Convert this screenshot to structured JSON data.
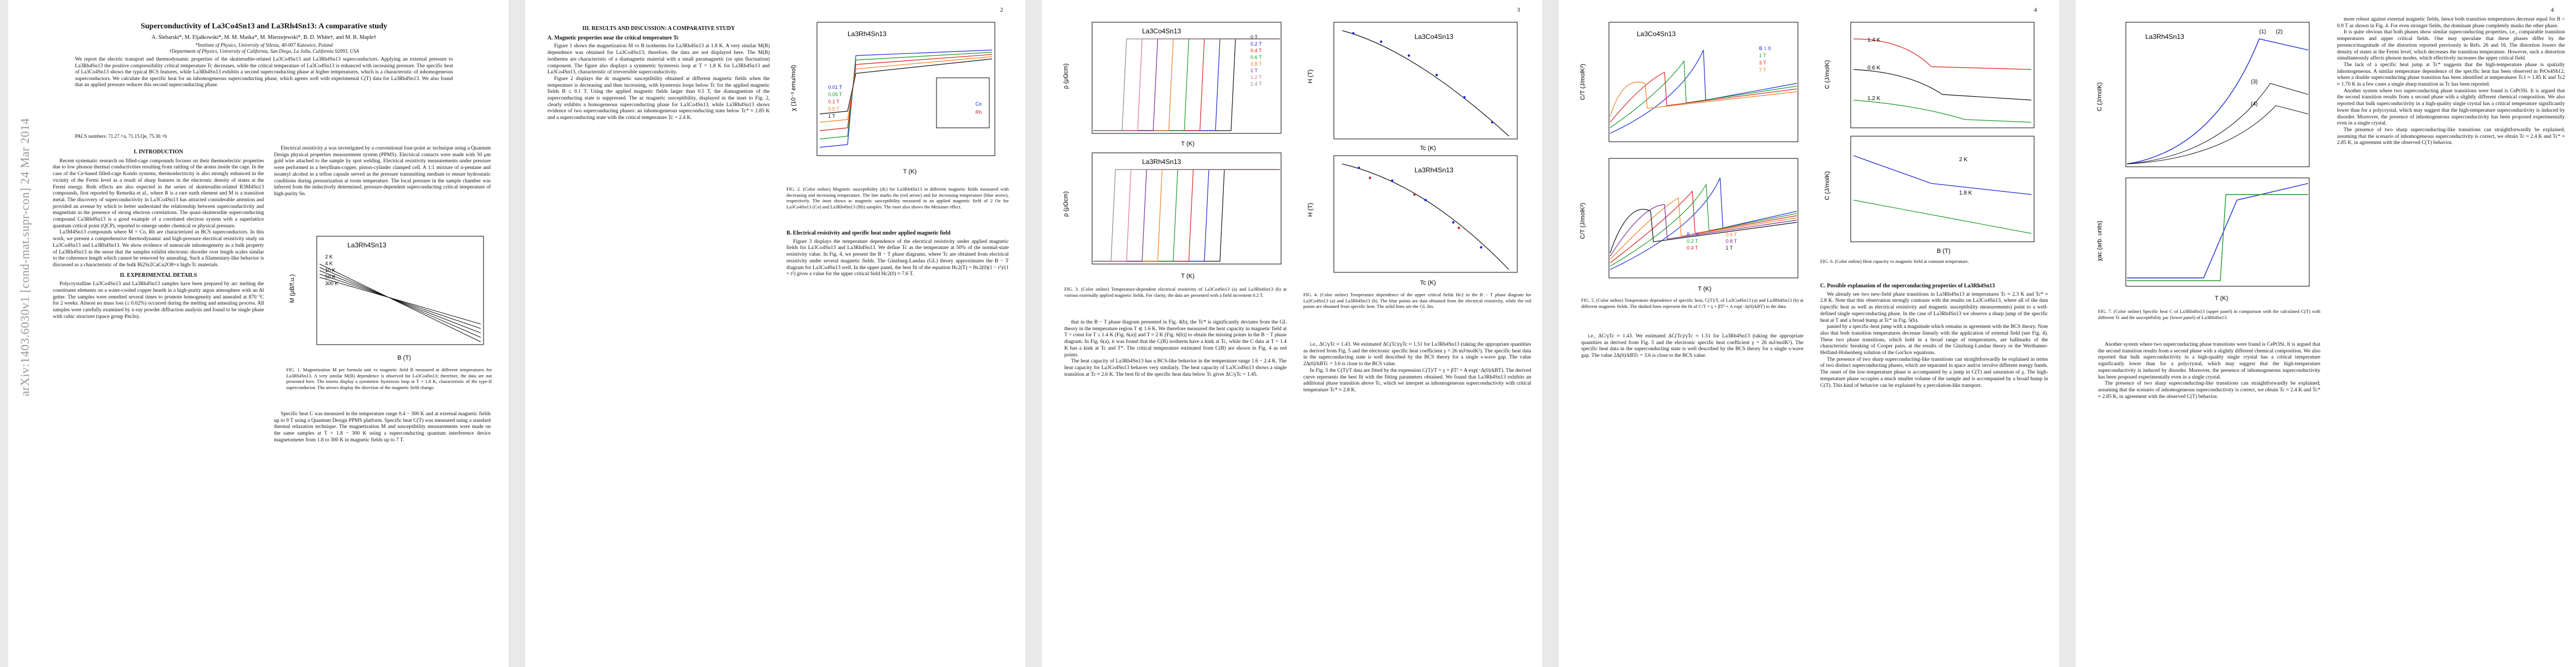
{
  "paper": {
    "arxiv_stamp": "arXiv:1403.6030v1 [cond-mat.supr-con] 24 Mar 2014",
    "title": "Superconductivity of La3Co4Sn13 and La3Rh4Sn13: A comparative study",
    "authors": "A. Ślebarski*, M. Fijałkowski*, M. M. Maśka*, M. Mierzejewski*, B. D. White†, and M. B. Maple†",
    "affiliation_1": "*Institute of Physics, University of Silesia, 40-007 Katowice, Poland",
    "affiliation_2": "†Department of Physics, University of California, San Diego, La Jolla, California 92093, USA",
    "abstract": "We report the electric transport and thermodynamic properties of the skutterudite-related La3Co4Sn13 and La3Rh4Sn13 superconductors. Applying an external pressure to La3Rh4Sn13 the positive compressibility critical temperature Tc decreases, while the critical temperature of La3Co4Sn13 is enhanced with increasing pressure. The specific heat of La3Co4Sn13 shows the typical BCS features, while La3Rh4Sn13 exhibits a second superconducting phase at higher temperatures, which is a characteristic of inhomogeneous superconductors. We calculate the specific heat for an inhomogeneous superconducting phase, which agrees well with experimental C(T) data for La3Rh4Sn13. We also found that an applied pressure reduces this second superconducting phase.",
    "pacs": "PACS numbers: 71.27.+a, 71.15.Qe, 75.30.+b",
    "page_numbers": [
      "2",
      "3",
      "4"
    ]
  },
  "sections": {
    "intro_heading": "I. INTRODUCTION",
    "intro_p1": "Recent systematic research on filled-cage compounds focuses on their thermoelectric properties due to low phonon thermal conductivities resulting from rattling of the atoms inside the cage. In the case of the Ce-based filled-cage Kondo systems, thermoelectricity is also strongly enhanced in the vicinity of the Fermi level as a result of sharp features in the electronic density of states at the Fermi energy. Both effects are also expected in the series of skutterudite-related R3M4Sn13 compounds, first reported by Remeika et al., where R is a rare earth element and M is a transition metal. The discovery of superconductivity in La3Co4Sn13 has attracted considerable attention and provided an avenue by which to better understand the relationship between superconductivity and magnetism in the presence of strong electron correlations. The quasi-skutterudite superconducting compound Ca3Rh4Sn13 is a good example of a correlated electron system with a superlattice quantum critical point (QCP), reported to emerge under chemical or physical pressure.",
    "intro_p2": "La3M4Sn13 compounds where M = Co, Rh are characterized as BCS superconductors. In this work, we present a comprehensive thermodynamic and high-pressure electrical resistivity study on La3Co4Sn13 and La3Rh4Sn13. We show evidence of nanoscale inhomogeneity as a bulk property of La3Rh4Sn13 in the sense that the samples exhibit electronic disorder over length scales similar to the coherence length which cannot be removed by annealing. Such a filamentary-like behavior is discussed as a characteristic of the bulk Bi2Sr2CaCu2O8+x high-Tc materials.",
    "exp_heading": "II. EXPERIMENTAL DETAILS",
    "exp_p1": "Polycrystalline La3Co4Sn13 and La3Rh4Sn13 samples have been prepared by arc melting the constituent elements on a water-cooled copper hearth in a high-purity argon atmosphere with an Al getter. The samples were remelted several times to promote homogeneity and annealed at 870 °C for 2 weeks. Almost no mass loss (≤ 0.02%) occurred during the melting and annealing process. All samples were carefully examined by x-ray powder diffraction analysis and found to be single phase with cubic structure (space group Pm3n).",
    "exp_p2": "Electrical resistivity ρ was investigated by a conventional four-point ac technique using a Quantum Design physical properties measurement system (PPMS). Electrical contacts were made with 50 μm gold wire attached to the sample by spot welding. Electrical resistivity measurements under pressure were performed in a beryllium-copper, piston-cylinder clamped cell. A 1:1 mixture of n-pentane and isoamyl alcohol in a teflon capsule served as the pressure transmitting medium to ensure hydrostatic conditions during pressurization at room temperature. The local pressure in the sample chamber was inferred from the inductively determined, pressure-dependent superconducting critical temperature of high-purity Sn.",
    "exp_p3": "Specific heat C was measured in the temperature range 0.4 − 300 K and at external magnetic fields up to 9 T using a Quantum Design PPMS platform. Specific heat C(T) was measured using a standard thermal relaxation technique. The magnetization M and susceptibility measurements were made on the same samples at T = 1.8 − 300 K using a superconducting quantum interference device magnetometer from 1.8 to 300 K in magnetic fields up to 7 T.",
    "results_heading": "III. RESULTS AND DISCUSSION: A COMPARATIVE STUDY",
    "sub_a": "A. Magnetic properties near the critical temperature Tc",
    "res_p1": "Figure 1 shows the magnetization M vs B isotherms for La3Rh4Sn13 at 1.8 K. A very similar M(B) dependence was obtained for La3Co4Sn13; therefore, the data are not displayed here. The M(B) isotherms are characteristic of a diamagnetic material with a small paramagnetic (or spin fluctuation) component. The figure also displays a symmetric hysteresis loop at T = 1.8 K for La3Rh4Sn13 and La3Co4Sn13, characteristic of irreversible superconductivity.",
    "res_p2": "Figure 2 displays the dc magnetic susceptibility obtained at different magnetic fields when the temperature is decreasing and then increasing, with hysteresis loops below Tc for the applied magnetic fields B ≤ 0.1 T. Using the applied magnetic fields larger than 0.5 T, the diamagnetism of the superconducting state is suppressed. The ac magnetic susceptibility, displayed in the inset to Fig. 2, clearly exhibits a homogeneous superconducting phase for La3Co4Sn13, while La3Rh4Sn13 shows evidence of two superconducting phases: an inhomogeneous superconducting state below Tc* ≈ 2.85 K and a superconducting state with the critical temperature Tc = 2.4 K.",
    "sub_b": "B. Electrical resistivity and specific heat under applied magnetic field",
    "res_p3": "Figure 3 displays the temperature dependence of the electrical resistivity under applied magnetic fields for La3Co4Sn13 and La3Rh4Sn13. We define Tc as the temperature at 50% of the normal-state resistivity value. In Fig. 4, we present the B − T phase diagrams, where Tc are obtained from electrical resistivity under several magnetic fields. The Ginzburg-Landau (GL) theory approximates the B − T diagram for La3Co4Sn13 well. In the upper panel, the best fit of the equation Hc2(T) = Hc2(0)(1 − t²)/(1 + t²) gives a value for the upper critical field Hc2(0) ≈ 7.6 T.",
    "res_p4": "that in the B − T phase diagram presented in Fig. 4(b), the Tc* is significantly deviates from the GL theory in the temperature region T ≲ 1.6 K. We therefore measured the heat capacity in magnetic field at T = const for T ≤ 1.4 K [Fig. 6(a)] and T ≈ 2 K [Fig. 6(b)] to obtain the missing points in the B − T phase diagram. In Fig. 6(a), it was found that the C(B) isotherm have a kink at Tc, while the C data at T = 1.4 K has a kink at Tc and T*. The critical temperature estimated from C(B) are shown in Fig. 4 as red points.",
    "res_p5": "The heat capacity of La3Rh4Sn13 has a BCS-like behavior in the temperature range 1.6 − 2.4 K. The heat capacity for La3Co4Sn13 behaves very similarly. The heat capacity of La3Co4Sn13 shows a single transition at Tc ≈ 2.6 K. The best fit of the specific heat data below Tc gives ΔC/γTc = 1.45.",
    "res_p6": "i.e., ΔC/γTc ≈ 1.43. We estimated ΔC(Tc)/γTc ≈ 1.51 for La3Rh4Sn13 (taking the appropriate quantities as derived from Fig. 5 and the electronic specific heat coefficient γ = 26 mJ/molK²). The specific heat data in the superconducting state is well described by the BCS theory for a single s-wave gap. The value 2Δ(0)/kBTc = 3.6 is close to the BCS value.",
    "res_p7": "In Fig. 5 the C(T)/T data are fitted by the expression C(T)/T = γ + βT² + A exp(−Δ(0)/kBT). The derived curve represents the best fit with the fitting parameters obtained. We found that La3Rh4Sn13 exhibits an additional phase transition above Tc, which we interpret as inhomogeneous superconductivity with critical temperature Tc* ≈ 2.8 K.",
    "sub_c": "C. Possible explanation of the superconducting properties of La3Rh4Sn13",
    "res_p8": "We already see two new-field phase transitions in La3Rh4Sn13 at temperatures Tc ≈ 2.3 K and Tc* ≈ 2.8 K. Note that this observation strongly contrasts with the results on La3Co4Sn13, where all of the data (specific heat as well as electrical resistivity and magnetic susceptibility measurements) point to a well-defined single superconducting phase. In the case of La3Rh4Sn13 we observe a sharp jump of the specific heat at T and a broad hump at Tc* in Fig. 5(b).",
    "res_p9": "panied by a specific-heat jump with a magnitude which remains in agreement with the BCS theory. Note also that both transition temperatures decrease linearly with the application of external field (see Fig. 4). These two phase transitions, which hold in a broad range of temperatures, are hallmarks of the characteristic breaking of Cooper pairs, at the results of the Ginzburg-Landau theory or the Werthamer-Helfand-Hohenberg solution of the Gor'kov equations.",
    "res_p10": "The presence of two sharp superconducting-like transitions can straightforwardly be explained in terms of two distinct superconducting phases, which are separated in space and/or involve different energy bands. The onset of the low-temperature phase is accompanied by a jump in C(T) and saturation of χ. The high-temperature phase occupies a much smaller volume of the sample and is accompanied by a broad hump in C(T). This kind of behavior can be explained by a percolation-like transport.",
    "res_p11": "more robust against external magnetic fields, hence both transition temperatures decrease equal for B < 0.9 T as shown in Fig. 4. For even stronger fields, the dominant phase completely masks the other phase.",
    "res_p12": "It is quite obvious that both phases show similar superconducting properties, i.e., comparable transition temperatures and upper critical fields. One may speculate that these phases differ by the presence/magnitude of the distortion reported previously in Refs. 26 and 16. The distortion lowers the density of states at the Fermi level, which decreases the transition temperature. However, such a distortion simultaneously affects phonon modes, which effectively increases the upper critical field.",
    "res_p13": "The lack of a specific heat jump at Tc* suggests that the high-temperature phase is spatially inhomogeneous. A similar temperature dependence of the specific heat has been observed in PrOs4Sb12, where a double superconducting phase transition has been identified at temperatures Tc1 ≈ 1.85 K and Tc2 ≈ 1.70 K in a few cases a single sharp transition as Tc has been reported.",
    "res_p14": "Another system where two superconducting phase transitions were found is CePt3Si. It is argued that the second transition results from a second phase with a slightly different chemical composition. We also reported that bulk superconductivity in a high-quality single crystal has a critical temperature significantly lower than for a polycrystal, which may suggest that the high-temperature superconductivity is induced by disorder. Moreover, the presence of inhomogeneous superconductivity has been proposed experimentally even in a single crystal.",
    "res_p15": "The presence of two sharp superconducting-like transitions can straightforwardly be explained; assuming that the scenario of inhomogeneous superconductivity is correct, we obtain Tc ≈ 2.4 K and Tc* ≈ 2.85 K, in agreement with the observed C(T) behavior."
  },
  "captions": {
    "fig1": "FIG. 1. Magnetization M per formula unit vs magnetic field B measured at different temperatures for La3Rh4Sn13. A very similar M(B) dependence is observed for La3Co4Sn13; therefore, the data are not presented here. The inserts display a symmetric hysteresis loop at T = 1.8 K, characteristic of the type-II superconductor. The arrows display the direction of the magnetic field change.",
    "fig2": "FIG. 2. (Color online) Magnetic susceptibility (dc) for La3Rh4Sn13 in different magnetic fields measured with decreasing and increasing temperature. The line marks the (red arrow) and for increasing temperature (blue arrow), respectively. The inset shows ac magnetic susceptibility measured in an applied magnetic field of 2 Oe for La3Co4Sn13 (Co) and La3Rh4Sn13 (Rh) samples. The inset also shows the Meissner effect.",
    "fig3": "FIG. 3. (Color online) Temperature-dependent electrical resistivity of La3Co4Sn13 (a) and La3Rh4Sn13 (b) at various externally applied magnetic fields. For clarity, the data are presented with a field increment 0.2 T.",
    "fig4": "FIG. 4. (Color online) Temperature dependence of the upper critical fields Hc2 in the B − T phase diagram for La3Co4Sn13 (a) and La3Rh4Sn13 (b). The blue points are data obtained from the electrical resistivity, while the red points are obtained from specific heat. The solid lines are the GL fits.",
    "fig5": "FIG. 5. (Color online) Temperature dependence of specific heat, C(T)/T, of La3Co4Sn13 (a) and La3Rh4Sn13 (b) at different magnetic fields. The dashed lines represent the fit of C/T = γ + βT² + A exp(−Δ(0)/kBT) to the data.",
    "fig6": "FIG. 6. (Color online) Heat capacity vs magnetic field at constant temperature.",
    "fig7": "FIG. 7. (Color online) Specific heat C of La3Rh4Sn13 (upper panel) in comparison with the calculated C(T) with different Tc and the susceptibility χac (lower panel) of La3Rh4Sn13."
  },
  "figures": {
    "fig1": {
      "title": "La3Rh4Sn13",
      "ylabel": "M (μB/f.u.)",
      "xlabel": "B (T)",
      "legend": [
        "2 K",
        "4 K",
        "10 K",
        "50 K",
        "300 K"
      ]
    },
    "fig2": {
      "title": "La3Rh4Sn13",
      "ylabel": "χ (10⁻³ emu/mol)",
      "xlabel": "T (K)",
      "legend": [
        "0.01 T",
        "0.05 T",
        "0.1 T",
        "0.5 T",
        "1 T"
      ],
      "inset": [
        "Co",
        "Rh"
      ]
    },
    "fig3": {
      "title_a": "La3Co4Sn13",
      "title_b": "La3Rh4Sn13",
      "ylabel": "ρ (μΩcm)",
      "xlabel": "T (K)",
      "legend": [
        "0 T",
        "0.2 T",
        "0.4 T",
        "0.6 T",
        "0.8 T",
        "1 T",
        "1.2 T",
        "1.4 T"
      ]
    },
    "fig4": {
      "title_a": "La3Co4Sn13",
      "title_b": "La3Rh4Sn13",
      "ylabel": "H (T)",
      "xlabel": "Tc (K)"
    },
    "fig5": {
      "title_a": "La3Co4Sn13",
      "ylabel": "C/T (J/molK²)",
      "xlabel": "T (K)",
      "legend_a": [
        "B = 0",
        "1 T",
        "3 T",
        "7 T"
      ],
      "legend_b": [
        "B = 0",
        "0.2 T",
        "0.4 T",
        "0.6 T",
        "0.8 T",
        "1 T"
      ]
    },
    "fig6": {
      "ylabel": "C (J/molK)",
      "xlabel": "B (T)",
      "labels_a": [
        "1.4 K",
        "0.6 K",
        "1.2 K"
      ],
      "labels_b": [
        "2 K",
        "1.8 K"
      ]
    },
    "fig7": {
      "title": "La3Rh4Sn13",
      "ylabel_top": "C (J/molK)",
      "ylabel_bottom": "χac (arb. units)",
      "xlabel": "T (K)",
      "labels": [
        "(1)",
        "(2)",
        "(3)",
        "(4)"
      ]
    }
  },
  "colors": {
    "red": "#d62020",
    "blue": "#1a2ad6",
    "green": "#1a9a2a",
    "orange": "#f08020",
    "purple": "#7a2a9a",
    "black": "#111111",
    "pink": "#e070a0"
  }
}
